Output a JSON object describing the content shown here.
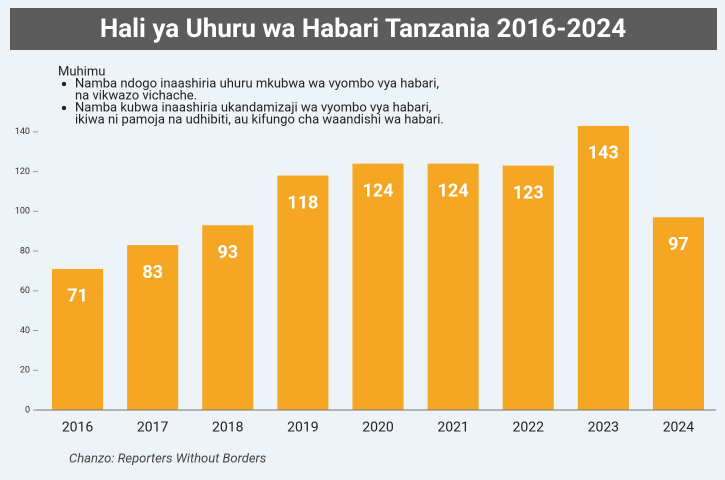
{
  "chart_data": {
    "type": "bar",
    "title": "Hali ya Uhuru wa Habari Tanzania 2016-2024",
    "note": {
      "heading": "Muhimu",
      "items": [
        [
          "Namba ndogo inaashiria uhuru mkubwa wa vyombo vya habari,",
          "na vikwazo vichache."
        ],
        [
          "Namba kubwa inaashiria ukandamizaji wa vyombo vya habari,",
          "ikiwa ni pamoja na udhibiti, au kifungo cha waandishi wa habari."
        ]
      ]
    },
    "categories": [
      "2016",
      "2017",
      "2018",
      "2019",
      "2020",
      "2021",
      "2022",
      "2023",
      "2024"
    ],
    "values": [
      71,
      83,
      93,
      118,
      124,
      124,
      123,
      143,
      97
    ],
    "color": "#f5a623",
    "ylim": [
      0,
      150
    ],
    "yticks": [
      0,
      20,
      40,
      60,
      80,
      100,
      120,
      140
    ],
    "grid": false,
    "source": "Chanzo: Reporters Without Borders"
  }
}
